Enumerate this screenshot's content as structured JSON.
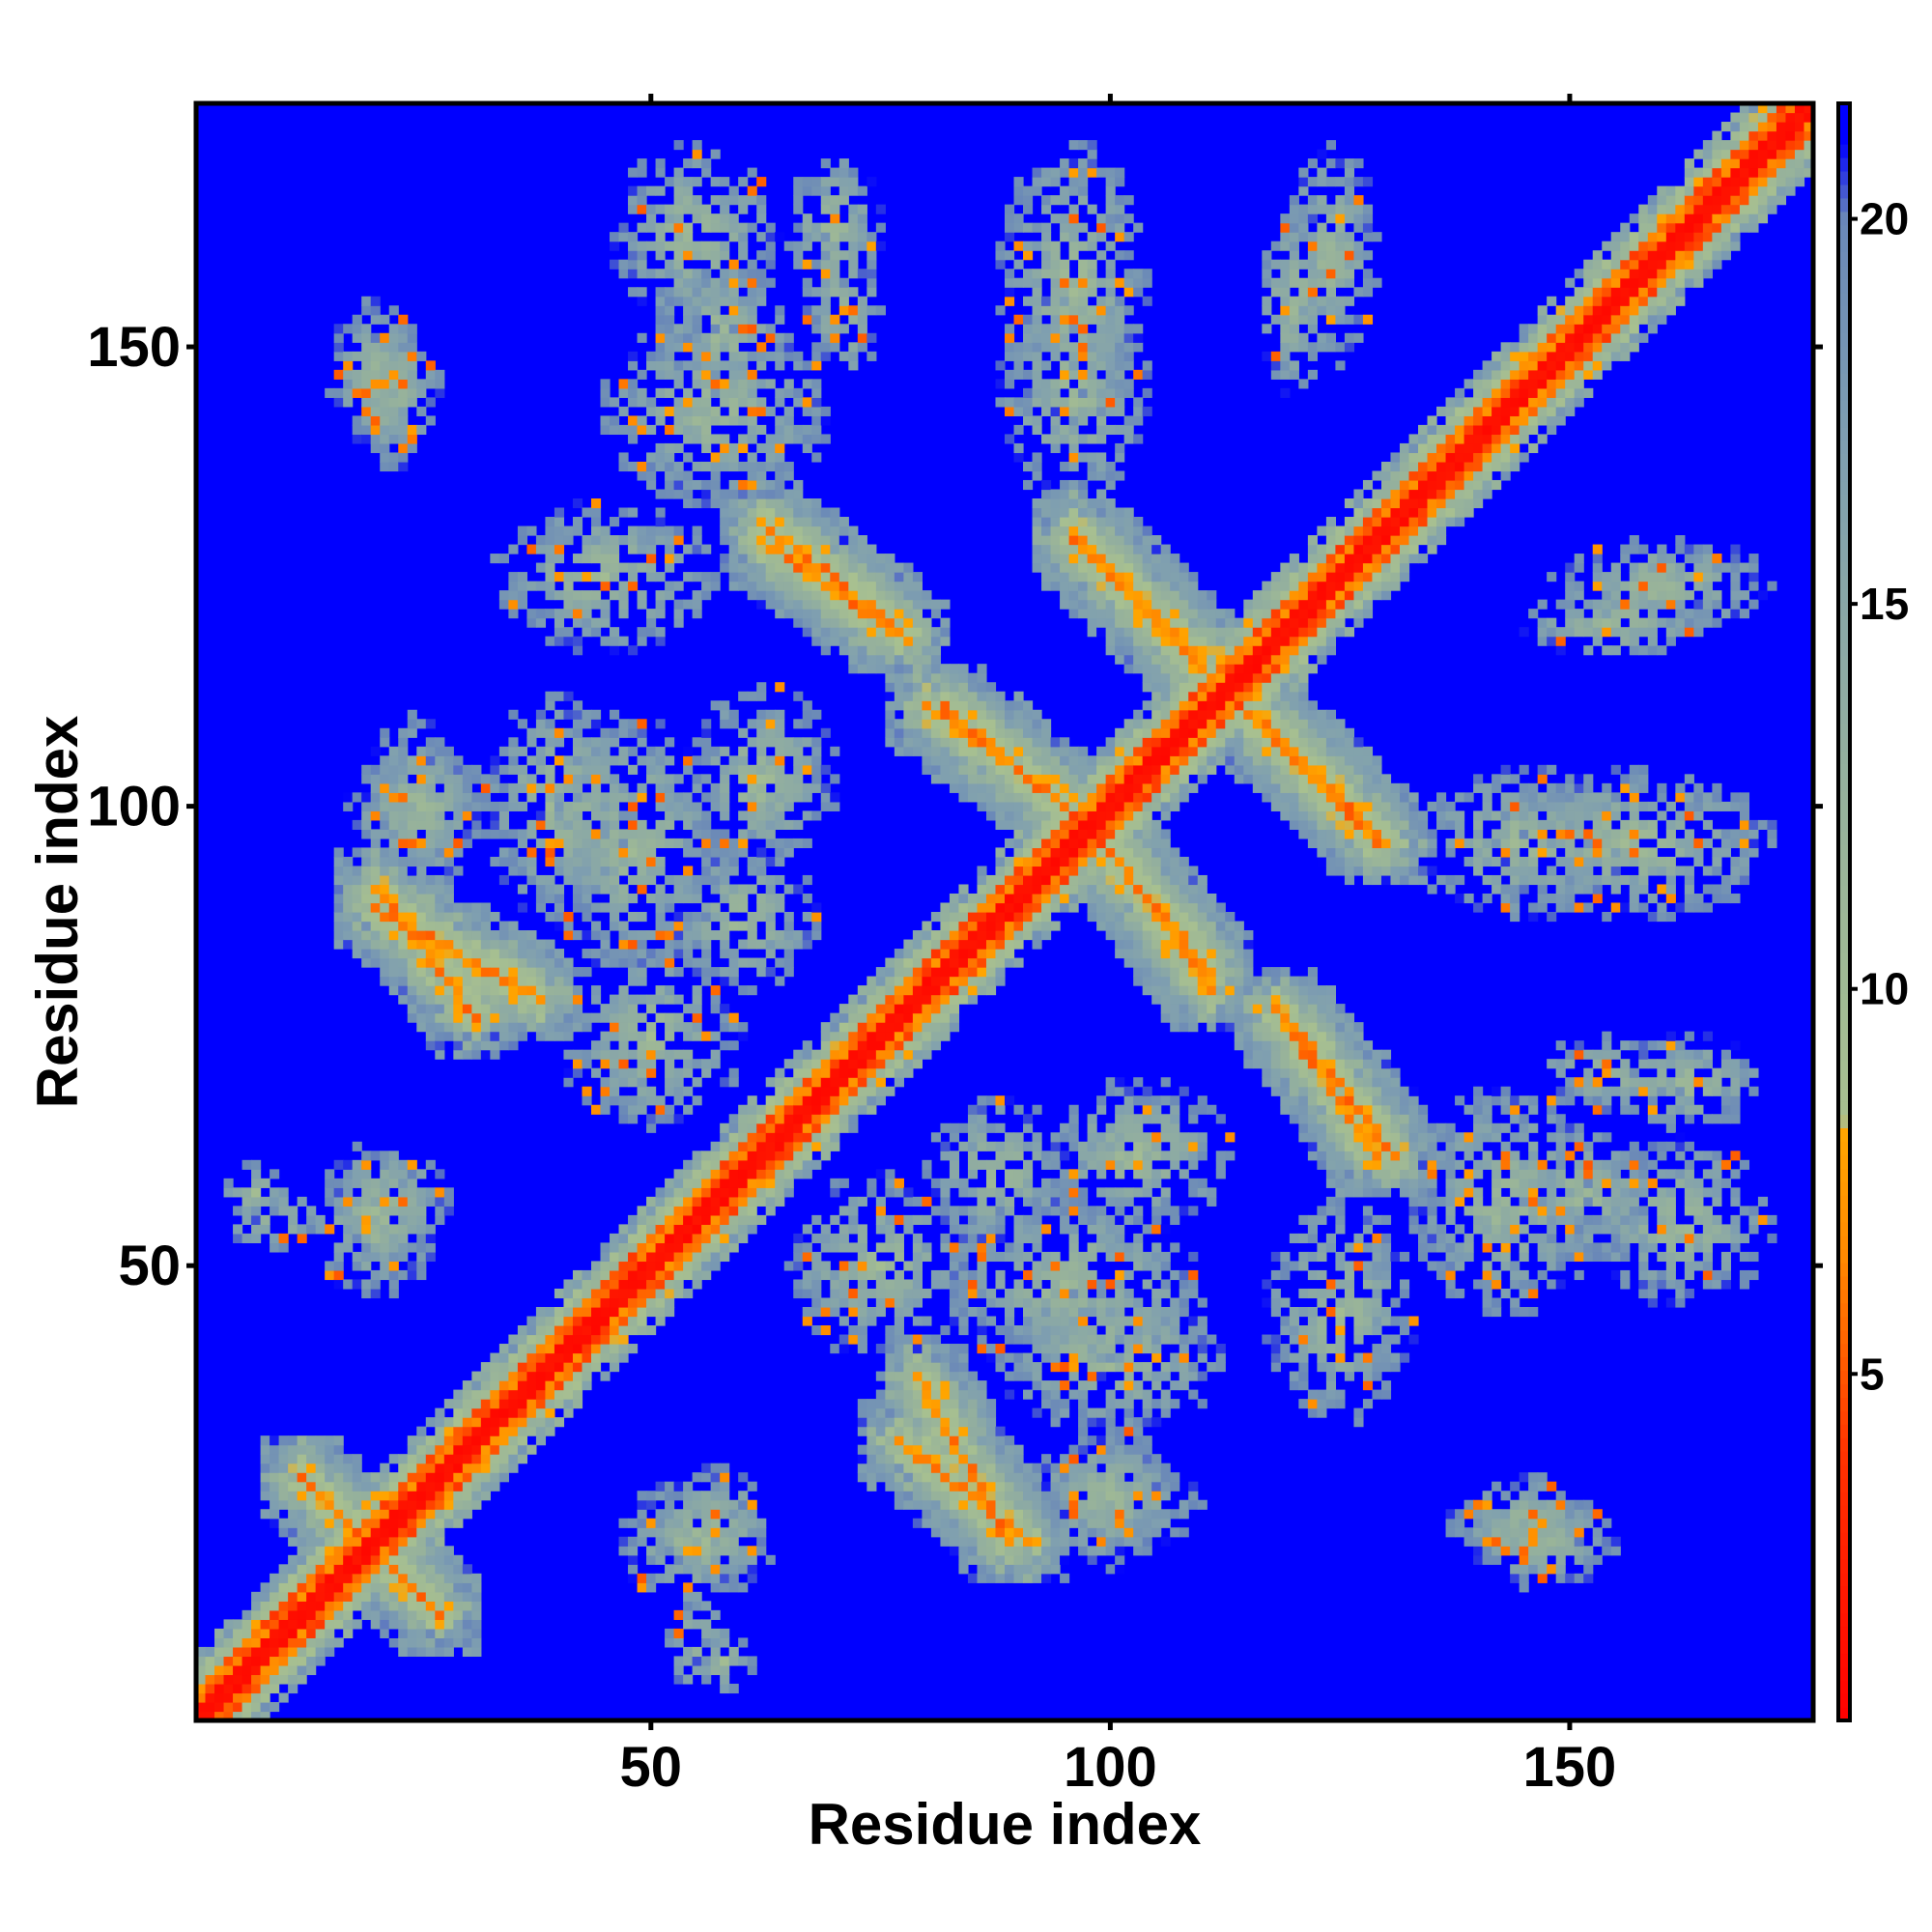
{
  "chart_data": {
    "type": "heatmap",
    "title": "",
    "xlabel": "Residue index",
    "ylabel": "Residue index",
    "n_residues": 176,
    "xlim": [
      1,
      176
    ],
    "ylim": [
      1,
      176
    ],
    "xticks": [
      50,
      100,
      150
    ],
    "yticks": [
      50,
      100,
      150
    ],
    "grid": false,
    "legend": "none",
    "colorbar": {
      "placement": "right",
      "ticks": [
        5,
        10,
        15,
        20
      ],
      "range": [
        0.5,
        21.5
      ],
      "scale": [
        {
          "value": 0.5,
          "color": "#ff0000"
        },
        {
          "value": 4.0,
          "color": "#ff3300"
        },
        {
          "value": 6.5,
          "color": "#ff8800"
        },
        {
          "value": 8.2,
          "color": "#ffa500"
        },
        {
          "value": 8.3,
          "color": "#a8c090"
        },
        {
          "value": 12.0,
          "color": "#98b39a"
        },
        {
          "value": 17.0,
          "color": "#7f9fb0"
        },
        {
          "value": 20.0,
          "color": "#6a88b8"
        },
        {
          "value": 21.0,
          "color": "#0000ff"
        }
      ]
    },
    "background_value": 21,
    "contact_features": [
      {
        "kind": "diagonal",
        "from": 1,
        "to": 176
      },
      {
        "kind": "antiparallel",
        "i_start": 12,
        "i_end": 27,
        "j_start": 27,
        "j_end": 12
      },
      {
        "kind": "antiparallel",
        "i_start": 77,
        "i_end": 91,
        "j_start": 31,
        "j_end": 20
      },
      {
        "kind": "antiparallel",
        "i_start": 20,
        "i_end": 38,
        "j_start": 89,
        "j_end": 79
      },
      {
        "kind": "antiparallel",
        "i_start": 62,
        "i_end": 78,
        "j_start": 129,
        "j_end": 118
      },
      {
        "kind": "antiparallel",
        "i_start": 80,
        "i_end": 98,
        "j_start": 111,
        "j_end": 98
      },
      {
        "kind": "antiparallel",
        "i_start": 99,
        "i_end": 111,
        "j_start": 96,
        "j_end": 82
      },
      {
        "kind": "antiparallel",
        "i_start": 115,
        "i_end": 129,
        "j_start": 110,
        "j_end": 96
      },
      {
        "kind": "antiparallel",
        "i_start": 96,
        "i_end": 110,
        "j_start": 130,
        "j_end": 116
      },
      {
        "kind": "antiparallel",
        "i_start": 120,
        "i_end": 131,
        "j_start": 76,
        "j_end": 62
      },
      {
        "kind": "blob",
        "i": 20,
        "j": 147,
        "ri": 5,
        "rj": 8
      },
      {
        "kind": "blob",
        "i": 55,
        "j": 162,
        "ri": 9,
        "rj": 10
      },
      {
        "kind": "blob",
        "i": 70,
        "j": 163,
        "ri": 5,
        "rj": 8
      },
      {
        "kind": "blob",
        "i": 96,
        "j": 157,
        "ri": 8,
        "rj": 15
      },
      {
        "kind": "blob",
        "i": 124,
        "j": 160,
        "ri": 5,
        "rj": 12
      },
      {
        "kind": "blob",
        "i": 145,
        "j": 96,
        "ri": 12,
        "rj": 8
      },
      {
        "kind": "blob",
        "i": 155,
        "j": 120,
        "ri": 10,
        "rj": 4
      },
      {
        "kind": "blob",
        "i": 155,
        "j": 71,
        "ri": 9,
        "rj": 4
      },
      {
        "kind": "blob",
        "i": 152,
        "j": 58,
        "ri": 7,
        "rj": 7
      },
      {
        "kind": "blob",
        "i": 145,
        "j": 22,
        "ri": 8,
        "rj": 5
      },
      {
        "kind": "blob",
        "i": 57,
        "j": 22,
        "ri": 6,
        "rj": 6
      },
      {
        "kind": "blob",
        "i": 55,
        "j": 9,
        "ri": 3,
        "rj": 5
      },
      {
        "kind": "blob",
        "i": 7,
        "j": 58,
        "ri": 4,
        "rj": 3
      },
      {
        "kind": "blob",
        "i": 20,
        "j": 55,
        "ri": 7,
        "rj": 8
      },
      {
        "kind": "blob",
        "i": 57,
        "j": 143,
        "ri": 12,
        "rj": 10
      },
      {
        "kind": "blob",
        "i": 48,
        "j": 96,
        "ri": 10,
        "rj": 14
      },
      {
        "kind": "blob",
        "i": 25,
        "j": 100,
        "ri": 8,
        "rj": 6
      },
      {
        "kind": "blob",
        "i": 100,
        "j": 40,
        "ri": 12,
        "rj": 8
      },
      {
        "kind": "blob",
        "i": 125,
        "j": 45,
        "ri": 8,
        "rj": 12
      },
      {
        "kind": "blob",
        "i": 100,
        "j": 25,
        "ri": 10,
        "rj": 6
      },
      {
        "kind": "blob",
        "i": 75,
        "j": 50,
        "ri": 10,
        "rj": 10
      },
      {
        "kind": "blob",
        "i": 88,
        "j": 60,
        "ri": 8,
        "rj": 8
      },
      {
        "kind": "blob",
        "i": 62,
        "j": 103,
        "ri": 8,
        "rj": 10
      }
    ]
  }
}
